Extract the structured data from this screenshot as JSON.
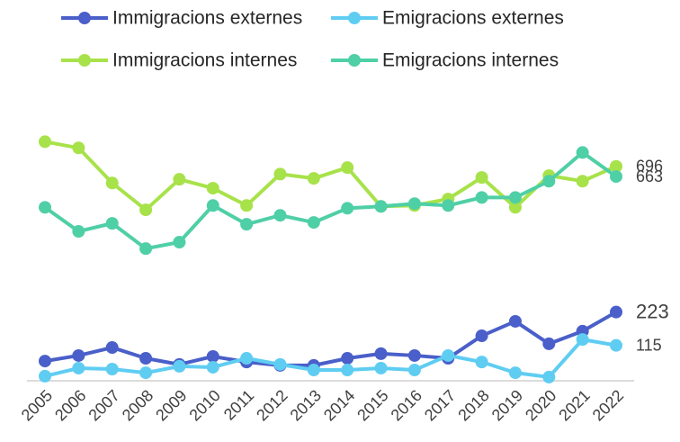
{
  "chart_data": {
    "type": "line",
    "categories": [
      "2005",
      "2006",
      "2007",
      "2008",
      "2009",
      "2010",
      "2011",
      "2012",
      "2013",
      "2014",
      "2015",
      "2016",
      "2017",
      "2018",
      "2019",
      "2020",
      "2021",
      "2022"
    ],
    "ylim": [
      0,
      900
    ],
    "legend": "top",
    "series": [
      {
        "name": "Immigracions externes",
        "color": "#4a5fc9",
        "values": [
          64,
          82,
          108,
          73,
          53,
          79,
          61,
          50,
          50,
          73,
          88,
          82,
          73,
          146,
          193,
          120,
          161,
          223
        ]
      },
      {
        "name": "Emigracions externes",
        "color": "#5fcdf2",
        "values": [
          15,
          41,
          38,
          26,
          47,
          44,
          73,
          53,
          35,
          35,
          41,
          35,
          82,
          61,
          26,
          12,
          134,
          115
        ]
      },
      {
        "name": "Immigracions internes",
        "color": "#a8e24a",
        "values": [
          776,
          756,
          642,
          555,
          654,
          625,
          569,
          671,
          657,
          692,
          566,
          569,
          590,
          660,
          563,
          666,
          648,
          696
        ]
      },
      {
        "name": "Emigracions internes",
        "color": "#4fcfa6",
        "values": [
          563,
          485,
          511,
          429,
          450,
          569,
          508,
          537,
          514,
          560,
          566,
          575,
          569,
          595,
          595,
          648,
          741,
          663
        ]
      }
    ]
  }
}
